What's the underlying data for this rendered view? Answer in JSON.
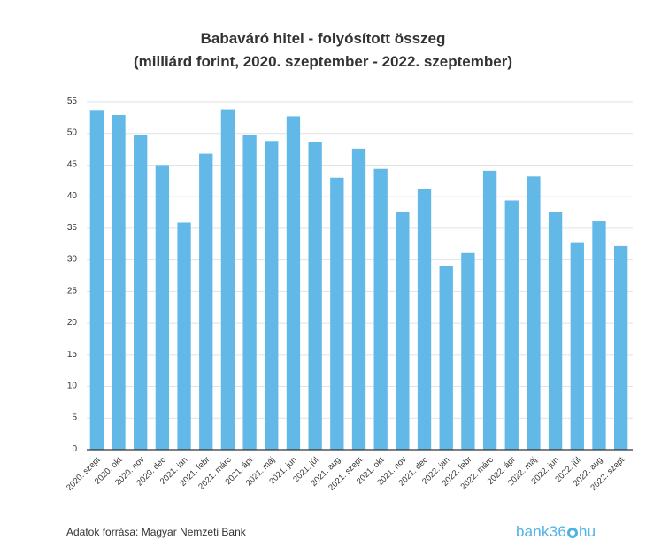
{
  "title_line1": "Babaváró hitel - folyósított összeg",
  "title_line2": "(milliárd forint, 2020. szeptember - 2022. szeptember)",
  "source": "Adatok forrása: Magyar Nemzeti Bank",
  "logo": {
    "text_before": "bank36",
    "text_after": "hu"
  },
  "colors": {
    "bar": "#62b8e6",
    "grid": "#e2e2e2",
    "axis": "#333333"
  },
  "chart_data": {
    "type": "bar",
    "title": "Babaváró hitel - folyósított összeg (milliárd forint, 2020. szeptember - 2022. szeptember)",
    "xlabel": "",
    "ylabel": "",
    "ylim": [
      0,
      55
    ],
    "yticks": [
      0,
      5,
      10,
      15,
      20,
      25,
      30,
      35,
      40,
      45,
      50,
      55
    ],
    "grid": true,
    "categories": [
      "2020. szept.",
      "2020. okt.",
      "2020. nov.",
      "2020. dec.",
      "2021. jan.",
      "2021. febr.",
      "2021. márc.",
      "2021. ápr.",
      "2021. máj.",
      "2021. jún.",
      "2021. júl.",
      "2021. aug.",
      "2021. szept.",
      "2021. okt.",
      "2021. nov.",
      "2021. dec.",
      "2022. jan.",
      "2022. febr.",
      "2022. márc.",
      "2022. ápr.",
      "2022. máj.",
      "2022. jún.",
      "2022. júl.",
      "2022. aug.",
      "2022. szept."
    ],
    "values": [
      53.7,
      52.9,
      49.7,
      45.0,
      35.9,
      46.8,
      53.8,
      49.7,
      48.8,
      52.7,
      48.7,
      43.0,
      47.6,
      44.4,
      37.6,
      41.2,
      29.0,
      31.1,
      44.1,
      39.4,
      43.2,
      37.6,
      32.8,
      36.1,
      32.2
    ]
  }
}
